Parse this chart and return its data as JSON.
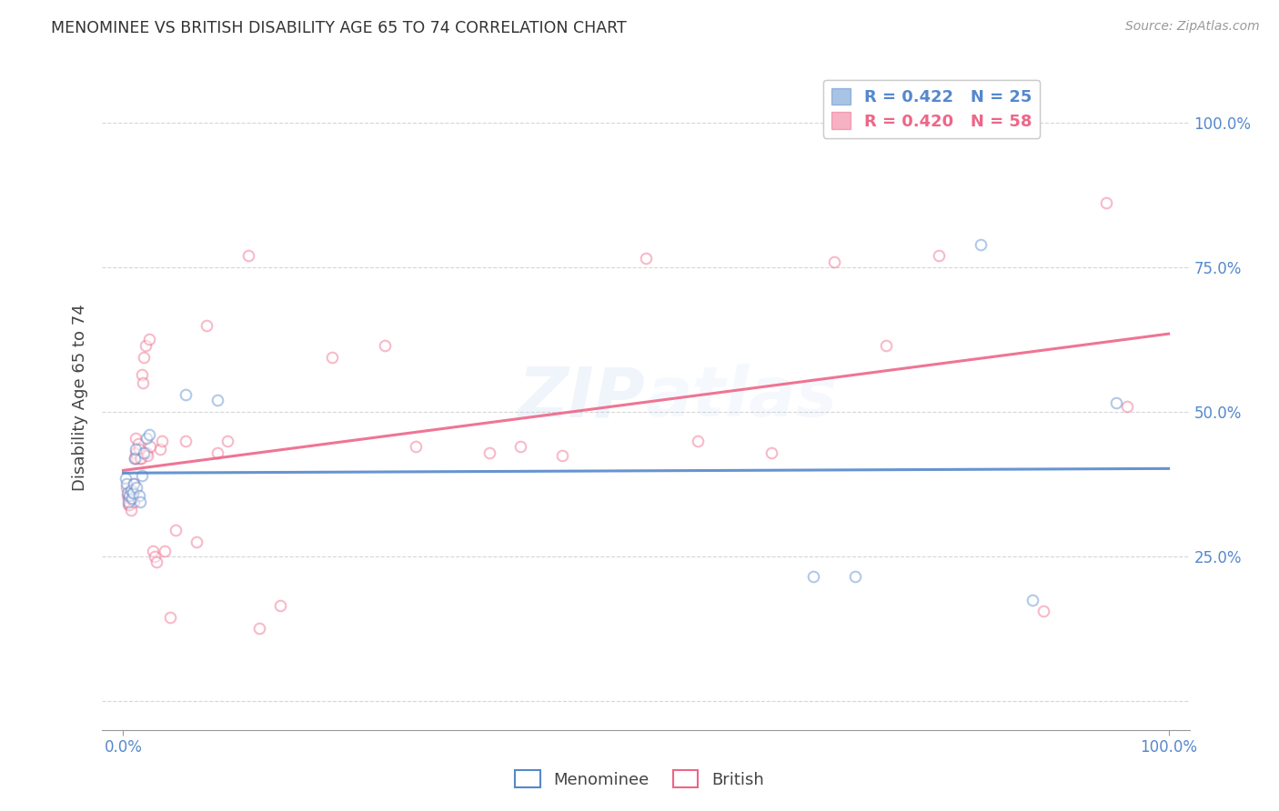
{
  "title": "MENOMINEE VS BRITISH DISABILITY AGE 65 TO 74 CORRELATION CHART",
  "source": "Source: ZipAtlas.com",
  "ylabel": "Disability Age 65 to 74",
  "xlim": [
    -0.02,
    1.02
  ],
  "ylim": [
    -0.05,
    1.1
  ],
  "ytick_positions": [
    0.0,
    0.25,
    0.5,
    0.75,
    1.0
  ],
  "ytick_labels": [
    "",
    "25.0%",
    "50.0%",
    "75.0%",
    "100.0%"
  ],
  "xtick_positions": [
    0.0,
    1.0
  ],
  "xtick_labels": [
    "0.0%",
    "100.0%"
  ],
  "legend_entries": [
    {
      "label": "R = 0.422   N = 25",
      "color": "#5588cc"
    },
    {
      "label": "R = 0.420   N = 58",
      "color": "#ee6688"
    }
  ],
  "menominee_x": [
    0.002,
    0.003,
    0.004,
    0.005,
    0.006,
    0.007,
    0.008,
    0.009,
    0.01,
    0.011,
    0.012,
    0.013,
    0.015,
    0.016,
    0.018,
    0.02,
    0.022,
    0.025,
    0.06,
    0.09,
    0.66,
    0.7,
    0.82,
    0.87,
    0.95
  ],
  "menominee_y": [
    0.385,
    0.375,
    0.36,
    0.345,
    0.355,
    0.365,
    0.35,
    0.36,
    0.375,
    0.42,
    0.435,
    0.37,
    0.355,
    0.345,
    0.39,
    0.43,
    0.455,
    0.46,
    0.53,
    0.52,
    0.215,
    0.215,
    0.79,
    0.175,
    0.515
  ],
  "british_x": [
    0.003,
    0.004,
    0.005,
    0.005,
    0.006,
    0.007,
    0.007,
    0.008,
    0.009,
    0.01,
    0.01,
    0.011,
    0.012,
    0.012,
    0.013,
    0.014,
    0.015,
    0.016,
    0.017,
    0.018,
    0.019,
    0.02,
    0.021,
    0.022,
    0.023,
    0.025,
    0.026,
    0.028,
    0.03,
    0.032,
    0.035,
    0.037,
    0.04,
    0.045,
    0.05,
    0.06,
    0.07,
    0.08,
    0.09,
    0.1,
    0.12,
    0.13,
    0.15,
    0.2,
    0.25,
    0.28,
    0.35,
    0.38,
    0.42,
    0.5,
    0.55,
    0.62,
    0.68,
    0.73,
    0.78,
    0.88,
    0.94,
    0.96
  ],
  "british_y": [
    0.37,
    0.355,
    0.34,
    0.35,
    0.34,
    0.33,
    0.35,
    0.365,
    0.36,
    0.345,
    0.375,
    0.42,
    0.43,
    0.455,
    0.42,
    0.445,
    0.435,
    0.42,
    0.42,
    0.565,
    0.55,
    0.595,
    0.615,
    0.43,
    0.425,
    0.625,
    0.44,
    0.26,
    0.25,
    0.24,
    0.435,
    0.45,
    0.26,
    0.145,
    0.295,
    0.45,
    0.275,
    0.65,
    0.43,
    0.45,
    0.77,
    0.125,
    0.165,
    0.595,
    0.615,
    0.44,
    0.43,
    0.44,
    0.425,
    0.765,
    0.45,
    0.43,
    0.76,
    0.615,
    0.77,
    0.156,
    0.862,
    0.51
  ],
  "menominee_color": "#5588cc",
  "british_color": "#ee6688",
  "marker_size": 70,
  "marker_alpha": 0.45,
  "line_width": 2.2,
  "grid_color": "#cccccc",
  "grid_linestyle": "--",
  "background_color": "#ffffff",
  "watermark_color": "#aaccee",
  "watermark_alpha": 0.18
}
